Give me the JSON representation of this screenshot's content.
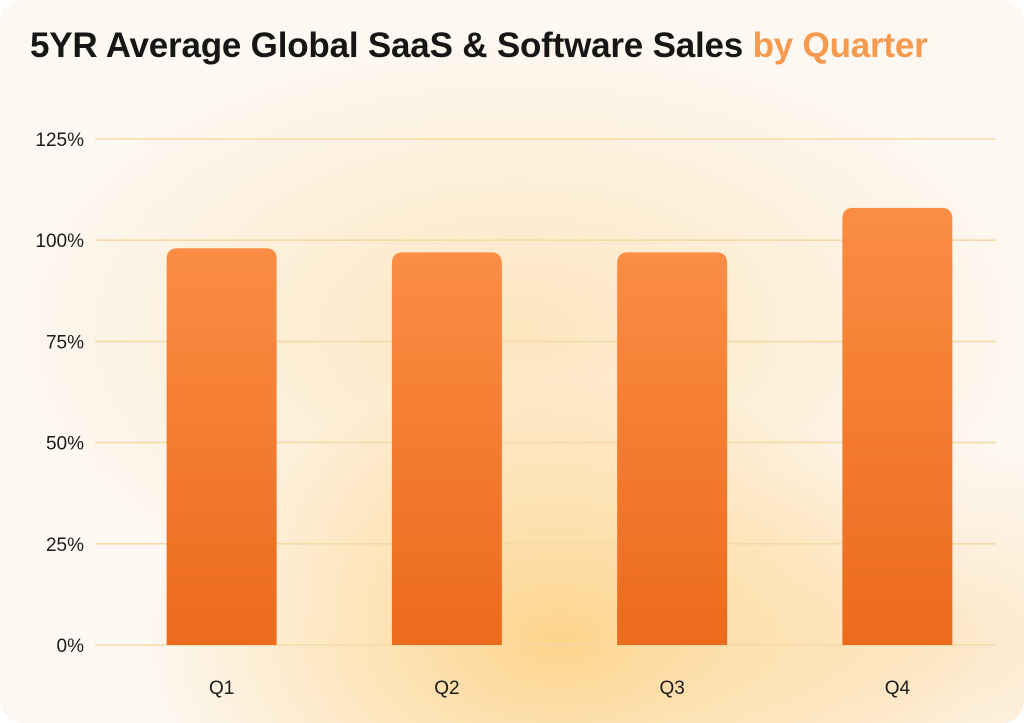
{
  "chart_data": {
    "type": "bar",
    "title": "5YR Average Global SaaS & Software Sales",
    "title_highlight": "by Quarter",
    "categories": [
      "Q1",
      "Q2",
      "Q3",
      "Q4"
    ],
    "values": [
      98,
      97,
      97,
      108
    ],
    "ylim": [
      0,
      125
    ],
    "yticks": [
      0,
      25,
      50,
      75,
      100,
      125
    ],
    "ytick_labels": [
      "0%",
      "25%",
      "50%",
      "75%",
      "100%",
      "125%"
    ],
    "grid": true,
    "legend": "none",
    "xlabel": "",
    "ylabel": ""
  },
  "colors": {
    "bar_top": "#fb8d44",
    "bar_bottom": "#ec6a1c",
    "accent": "#f59a4e",
    "grid": "#f6d9a8",
    "title": "#161616"
  }
}
